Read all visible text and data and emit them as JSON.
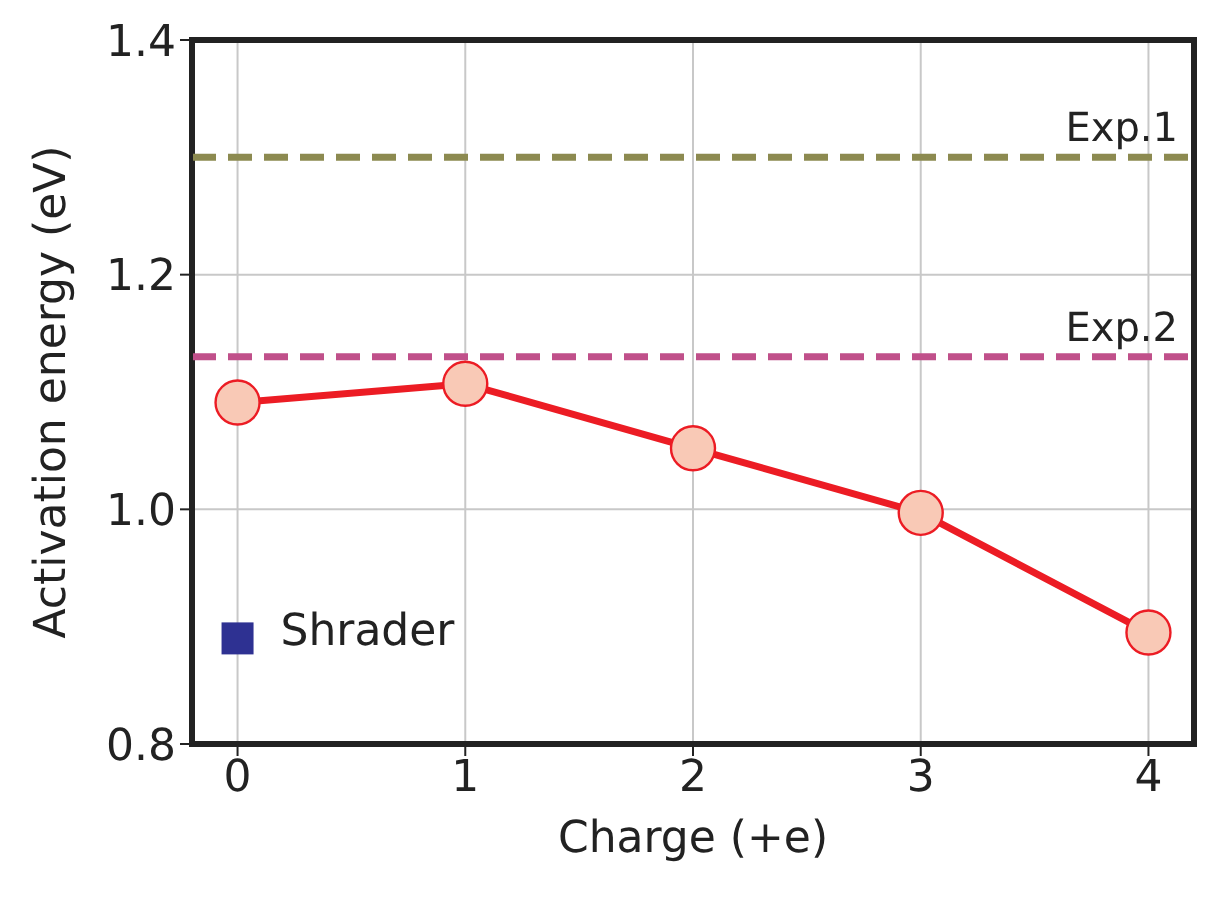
{
  "chart_data": {
    "type": "line",
    "xlabel": "Charge (+e)",
    "ylabel": "Activation energy (eV)",
    "x": [
      0,
      1,
      2,
      3,
      4
    ],
    "series": [
      {
        "color": "#ec1c24",
        "values": [
          1.091,
          1.107,
          1.052,
          0.997,
          0.895
        ],
        "marker": "circle"
      },
      {
        "type": "scatter",
        "name": "Shrader",
        "color": "#2e3192",
        "x": [
          0
        ],
        "values": [
          0.89
        ],
        "marker": "square"
      }
    ],
    "xlim": [
      -0.2,
      4.2
    ],
    "xticks": [
      0,
      1,
      2,
      3,
      4
    ],
    "ylim": [
      0.8,
      1.4
    ],
    "yticks": [
      0.8,
      {
        "value": 1,
        "label": "1.0"
      },
      1.2,
      1.4
    ],
    "ref_lines": [
      {
        "axis": "y",
        "value": 1.3,
        "label": "Exp.1",
        "color": "#8c8a50",
        "line_style": "dashed"
      },
      {
        "axis": "y",
        "value": 1.13,
        "label": "Exp.2",
        "color": "#c0508a",
        "line_style": "dashed"
      }
    ],
    "grid": true,
    "line_style": "solid"
  }
}
